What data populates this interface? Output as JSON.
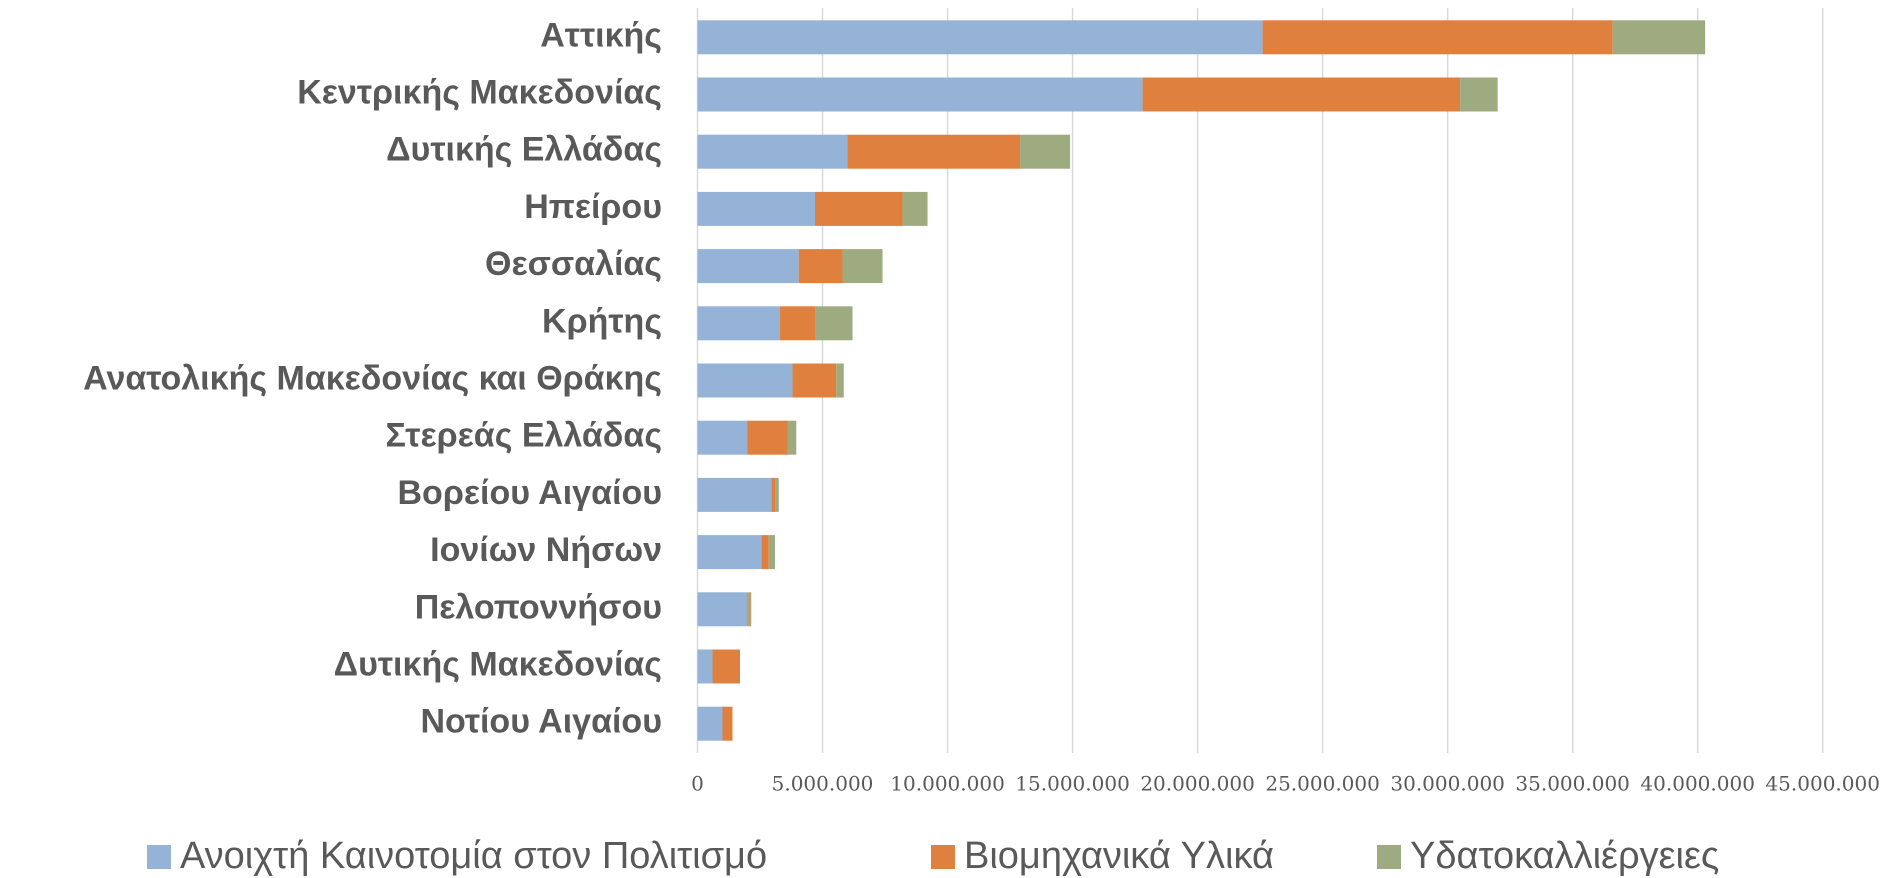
{
  "chart_data": {
    "type": "stacked_barh",
    "categories": [
      "Αττικής",
      "Κεντρικής Μακεδονίας",
      "Δυτικής Ελλάδας",
      "Ηπείρου",
      "Θεσσαλίας",
      "Κρήτης",
      "Ανατολικής Μακεδονίας και Θράκης",
      "Στερεάς Ελλάδας",
      "Βορείου Αιγαίου",
      "Ιονίων Νήσων",
      "Πελοποννήσου",
      "Δυτικής Μακεδονίας",
      "Νοτίου Αιγαίου"
    ],
    "series": [
      {
        "name": "Ανοιχτή Καινοτομία στον Πολιτισμό",
        "color": "#95b3d7",
        "values": [
          22600000,
          17800000,
          6000000,
          4700000,
          4050000,
          3300000,
          3800000,
          2000000,
          2950000,
          2550000,
          2000000,
          600000,
          1000000
        ]
      },
      {
        "name": "Βιομηχανικά Υλικά",
        "color": "#e0803f",
        "values": [
          14000000,
          12700000,
          6900000,
          3500000,
          1750000,
          1400000,
          1750000,
          1600000,
          150000,
          300000,
          50000,
          1100000,
          400000
        ]
      },
      {
        "name": "Υδατοκαλλιέργειες",
        "color": "#9eaa7f",
        "values": [
          3700000,
          1500000,
          2000000,
          1000000,
          1600000,
          1500000,
          300000,
          350000,
          150000,
          250000,
          100000,
          0,
          0
        ]
      }
    ],
    "xlim": [
      0,
      45000000
    ],
    "xticks": [
      0,
      {
        "value": 5000000,
        "label": "5.000.000"
      },
      {
        "value": 10000000,
        "label": "10.000.000"
      },
      {
        "value": 15000000,
        "label": "15.000.000"
      },
      {
        "value": 20000000,
        "label": "20.000.000"
      },
      {
        "value": 25000000,
        "label": "25.000.000"
      },
      {
        "value": 30000000,
        "label": "30.000.000"
      },
      {
        "value": 35000000,
        "label": "35.000.000"
      },
      {
        "value": 40000000,
        "label": "40.000.000"
      },
      {
        "value": 45000000,
        "label": "45.000.000"
      }
    ],
    "grid": true,
    "legend": "bottom"
  }
}
